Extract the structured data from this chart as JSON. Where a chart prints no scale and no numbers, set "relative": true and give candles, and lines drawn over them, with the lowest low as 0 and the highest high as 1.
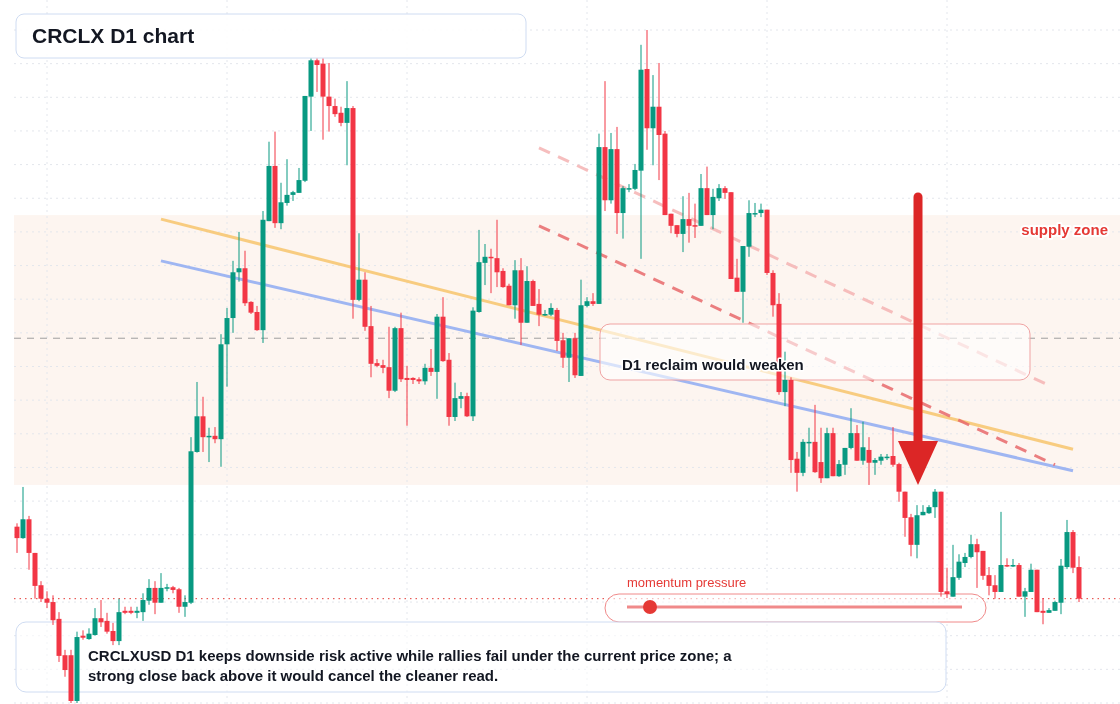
{
  "chart_data": {
    "type": "candlestick",
    "title": "CRCLX D1 chart",
    "relative": true,
    "grid": true,
    "categories": [
      null,
      null,
      null,
      null,
      null,
      null,
      null,
      null,
      null,
      null,
      null,
      null,
      null,
      null,
      null,
      null,
      null,
      null,
      null,
      null,
      null,
      null,
      null,
      null,
      null,
      null,
      null,
      null,
      null,
      null,
      null,
      null,
      null,
      null,
      null,
      null,
      null,
      null,
      null,
      null,
      null,
      null,
      null,
      null,
      null,
      null,
      null,
      null,
      null,
      null,
      null,
      null,
      null,
      null,
      null,
      null,
      null,
      null,
      null,
      null,
      null,
      null,
      null,
      null,
      null,
      null,
      null,
      null,
      null,
      null,
      null,
      null,
      null,
      null,
      null,
      null,
      null,
      null,
      null,
      null,
      null,
      null,
      null,
      null,
      null,
      null,
      null,
      null,
      null,
      null,
      null,
      null,
      null,
      null,
      null,
      null,
      null,
      null,
      null,
      null,
      null,
      null,
      null,
      null,
      null,
      null,
      null,
      null,
      null,
      null,
      null,
      null,
      null,
      null,
      null,
      null,
      null,
      null,
      null,
      null,
      null,
      null,
      null,
      null,
      null,
      null,
      null,
      null,
      null,
      null,
      null,
      null,
      null,
      null,
      null,
      null,
      null,
      null,
      null,
      null,
      null,
      null,
      null,
      null,
      null,
      null,
      null,
      null,
      null,
      null,
      null,
      null,
      null,
      null,
      null,
      null,
      null,
      null,
      null,
      null,
      null,
      null,
      null,
      null,
      null,
      null,
      null,
      null,
      null,
      null,
      null,
      null,
      null,
      null,
      null,
      null,
      null,
      null
    ],
    "ohlc": [
      [
        0.262,
        0.267,
        0.223,
        0.245
      ],
      [
        0.245,
        0.321,
        0.244,
        0.273
      ],
      [
        0.273,
        0.278,
        0.198,
        0.223
      ],
      [
        0.223,
        0.223,
        0.155,
        0.174
      ],
      [
        0.175,
        0.181,
        0.15,
        0.155
      ],
      [
        0.155,
        0.166,
        0.141,
        0.149
      ],
      [
        0.15,
        0.16,
        0.116,
        0.123
      ],
      [
        0.125,
        0.135,
        0.061,
        0.07
      ],
      [
        0.071,
        0.079,
        0.039,
        0.049
      ],
      [
        0.071,
        0.079,
        0,
        0.003
      ],
      [
        0.003,
        0.106,
        0,
        0.098
      ],
      [
        0.1,
        0.108,
        0.094,
        0.097
      ],
      [
        0.095,
        0.111,
        0.094,
        0.103
      ],
      [
        0.101,
        0.141,
        0.1,
        0.126
      ],
      [
        0.126,
        0.153,
        0.113,
        0.12
      ],
      [
        0.122,
        0.134,
        0.103,
        0.106
      ],
      [
        0.107,
        0.119,
        0.086,
        0.092
      ],
      [
        0.092,
        0.155,
        0.086,
        0.135
      ],
      [
        0.137,
        0.143,
        0.132,
        0.134
      ],
      [
        0.137,
        0.143,
        0.132,
        0.134
      ],
      [
        0.134,
        0.143,
        0.126,
        0.137
      ],
      [
        0.135,
        0.163,
        0.122,
        0.153
      ],
      [
        0.152,
        0.184,
        0.146,
        0.171
      ],
      [
        0.171,
        0.181,
        0.132,
        0.149
      ],
      [
        0.149,
        0.193,
        0.149,
        0.171
      ],
      [
        0.171,
        0.177,
        0.166,
        0.172
      ],
      [
        0.172,
        0.174,
        0.163,
        0.168
      ],
      [
        0.169,
        0.171,
        0.134,
        0.143
      ],
      [
        0.143,
        0.16,
        0.128,
        0.15
      ],
      [
        0.149,
        0.395,
        0.147,
        0.374
      ],
      [
        0.373,
        0.477,
        0.372,
        0.426
      ],
      [
        0.426,
        0.455,
        0.373,
        0.395
      ],
      [
        0.395,
        0.409,
        0.358,
        0.397
      ],
      [
        0.397,
        0.41,
        0.386,
        0.392
      ],
      [
        0.392,
        0.548,
        0.351,
        0.533
      ],
      [
        0.533,
        0.587,
        0.47,
        0.572
      ],
      [
        0.572,
        0.657,
        0.55,
        0.64
      ],
      [
        0.64,
        0.7,
        0.626,
        0.646
      ],
      [
        0.646,
        0.672,
        0.59,
        0.594
      ],
      [
        0.596,
        0.597,
        0.578,
        0.58
      ],
      [
        0.581,
        0.59,
        0.553,
        0.554
      ],
      [
        0.554,
        0.731,
        0.535,
        0.718
      ],
      [
        0.716,
        0.834,
        0.716,
        0.798
      ],
      [
        0.798,
        0.849,
        0.706,
        0.713
      ],
      [
        0.713,
        0.773,
        0.704,
        0.744
      ],
      [
        0.743,
        0.808,
        0.739,
        0.755
      ],
      [
        0.755,
        0.761,
        0.746,
        0.759
      ],
      [
        0.758,
        0.795,
        0.758,
        0.777
      ],
      [
        0.776,
        0.902,
        0.774,
        0.902
      ],
      [
        0.901,
        0.958,
        0.85,
        0.955
      ],
      [
        0.955,
        0.958,
        0.908,
        0.948
      ],
      [
        0.95,
        0.958,
        0.837,
        0.901
      ],
      [
        0.901,
        0.951,
        0.849,
        0.887
      ],
      [
        0.887,
        0.898,
        0.871,
        0.875
      ],
      [
        0.877,
        0.886,
        0.857,
        0.862
      ],
      [
        0.862,
        0.924,
        0.799,
        0.884
      ],
      [
        0.884,
        0.887,
        0.571,
        0.599
      ],
      [
        0.599,
        0.698,
        0.597,
        0.629
      ],
      [
        0.629,
        0.64,
        0.553,
        0.559
      ],
      [
        0.56,
        0.59,
        0.484,
        0.504
      ],
      [
        0.505,
        0.511,
        0.499,
        0.501
      ],
      [
        0.502,
        0.51,
        0.49,
        0.498
      ],
      [
        0.499,
        0.559,
        0.453,
        0.464
      ],
      [
        0.464,
        0.559,
        0.462,
        0.557
      ],
      [
        0.557,
        0.58,
        0.477,
        0.481
      ],
      [
        0.483,
        0.501,
        0.412,
        0.48
      ],
      [
        0.483,
        0.484,
        0.474,
        0.48
      ],
      [
        0.481,
        0.484,
        0.474,
        0.478
      ],
      [
        0.478,
        0.504,
        0.473,
        0.498
      ],
      [
        0.498,
        0.526,
        0.486,
        0.492
      ],
      [
        0.492,
        0.578,
        0.452,
        0.574
      ],
      [
        0.574,
        0.603,
        0.507,
        0.508
      ],
      [
        0.51,
        0.52,
        0.412,
        0.425
      ],
      [
        0.425,
        0.476,
        0.419,
        0.453
      ],
      [
        0.452,
        0.462,
        0.438,
        0.456
      ],
      [
        0.456,
        0.461,
        0.425,
        0.426
      ],
      [
        0.426,
        0.588,
        0.419,
        0.583
      ],
      [
        0.581,
        0.703,
        0.58,
        0.655
      ],
      [
        0.654,
        0.682,
        0.621,
        0.663
      ],
      [
        0.663,
        0.675,
        0.609,
        0.661
      ],
      [
        0.661,
        0.718,
        0.618,
        0.64
      ],
      [
        0.642,
        0.646,
        0.617,
        0.618
      ],
      [
        0.62,
        0.623,
        0.591,
        0.591
      ],
      [
        0.591,
        0.658,
        0.571,
        0.643
      ],
      [
        0.643,
        0.661,
        0.532,
        0.565
      ],
      [
        0.565,
        0.649,
        0.565,
        0.627
      ],
      [
        0.627,
        0.629,
        0.59,
        0.59
      ],
      [
        0.593,
        0.615,
        0.56,
        0.577
      ],
      [
        0.577,
        0.584,
        0.575,
        0.578
      ],
      [
        0.577,
        0.594,
        0.575,
        0.587
      ],
      [
        0.584,
        0.587,
        0.523,
        0.538
      ],
      [
        0.539,
        0.55,
        0.498,
        0.513
      ],
      [
        0.513,
        0.542,
        0.477,
        0.542
      ],
      [
        0.542,
        0.55,
        0.483,
        0.487
      ],
      [
        0.486,
        0.629,
        0.486,
        0.591
      ],
      [
        0.59,
        0.603,
        0.588,
        0.597
      ],
      [
        0.597,
        0.609,
        0.59,
        0.593
      ],
      [
        0.593,
        0.846,
        0.593,
        0.826
      ],
      [
        0.826,
        0.924,
        0.731,
        0.747
      ],
      [
        0.747,
        0.847,
        0.742,
        0.823
      ],
      [
        0.823,
        0.856,
        0.697,
        0.728
      ],
      [
        0.728,
        0.768,
        0.69,
        0.765
      ],
      [
        0.764,
        0.771,
        0.759,
        0.765
      ],
      [
        0.764,
        0.801,
        0.762,
        0.792
      ],
      [
        0.791,
        0.978,
        0.66,
        0.941
      ],
      [
        0.942,
        1,
        0.822,
        0.854
      ],
      [
        0.854,
        0.933,
        0.799,
        0.886
      ],
      [
        0.886,
        0.951,
        0.777,
        0.844
      ],
      [
        0.846,
        0.85,
        0.725,
        0.725
      ],
      [
        0.727,
        0.727,
        0.698,
        0.709
      ],
      [
        0.71,
        0.71,
        0.692,
        0.697
      ],
      [
        0.697,
        0.753,
        0.67,
        0.719
      ],
      [
        0.719,
        0.758,
        0.684,
        0.709
      ],
      [
        0.71,
        0.742,
        0.691,
        0.709
      ],
      [
        0.709,
        0.786,
        0.709,
        0.765
      ],
      [
        0.765,
        0.797,
        0.725,
        0.725
      ],
      [
        0.725,
        0.764,
        0.704,
        0.752
      ],
      [
        0.75,
        0.771,
        0.746,
        0.765
      ],
      [
        0.765,
        0.768,
        0.749,
        0.758
      ],
      [
        0.759,
        0.759,
        0.63,
        0.63
      ],
      [
        0.632,
        0.66,
        0.611,
        0.611
      ],
      [
        0.611,
        0.679,
        0.565,
        0.679
      ],
      [
        0.678,
        0.747,
        0.663,
        0.728
      ],
      [
        0.727,
        0.743,
        0.722,
        0.728
      ],
      [
        0.728,
        0.742,
        0.722,
        0.733
      ],
      [
        0.733,
        0.733,
        0.636,
        0.639
      ],
      [
        0.639,
        0.643,
        0.574,
        0.591
      ],
      [
        0.593,
        0.609,
        0.458,
        0.462
      ],
      [
        0.462,
        0.522,
        0.441,
        0.48
      ],
      [
        0.48,
        0.484,
        0.342,
        0.361
      ],
      [
        0.363,
        0.373,
        0.314,
        0.342
      ],
      [
        0.342,
        0.392,
        0.337,
        0.388
      ],
      [
        0.386,
        0.409,
        0.366,
        0.388
      ],
      [
        0.388,
        0.443,
        0.342,
        0.343
      ],
      [
        0.358,
        0.409,
        0.327,
        0.334
      ],
      [
        0.334,
        0.409,
        0.334,
        0.401
      ],
      [
        0.401,
        0.409,
        0.337,
        0.337
      ],
      [
        0.337,
        0.361,
        0.336,
        0.355
      ],
      [
        0.354,
        0.379,
        0.339,
        0.379
      ],
      [
        0.379,
        0.438,
        0.377,
        0.401
      ],
      [
        0.401,
        0.413,
        0.36,
        0.36
      ],
      [
        0.36,
        0.418,
        0.354,
        0.38
      ],
      [
        0.376,
        0.395,
        0.324,
        0.357
      ],
      [
        0.357,
        0.364,
        0.339,
        0.361
      ],
      [
        0.36,
        0.37,
        0.354,
        0.366
      ],
      [
        0.364,
        0.37,
        0.361,
        0.366
      ],
      [
        0.367,
        0.41,
        0.351,
        0.354
      ],
      [
        0.355,
        0.357,
        0.299,
        0.314
      ],
      [
        0.314,
        0.314,
        0.247,
        0.275
      ],
      [
        0.276,
        0.281,
        0.218,
        0.235
      ],
      [
        0.235,
        0.294,
        0.215,
        0.279
      ],
      [
        0.279,
        0.294,
        0.279,
        0.284
      ],
      [
        0.282,
        0.294,
        0.281,
        0.291
      ],
      [
        0.291,
        0.318,
        0.275,
        0.314
      ],
      [
        0.314,
        0.314,
        0.158,
        0.165
      ],
      [
        0.166,
        0.201,
        0.156,
        0.162
      ],
      [
        0.158,
        0.235,
        0.158,
        0.187
      ],
      [
        0.186,
        0.221,
        0.183,
        0.21
      ],
      [
        0.208,
        0.223,
        0.202,
        0.217
      ],
      [
        0.217,
        0.25,
        0.215,
        0.236
      ],
      [
        0.236,
        0.244,
        0.171,
        0.224
      ],
      [
        0.226,
        0.226,
        0.183,
        0.189
      ],
      [
        0.19,
        0.202,
        0.16,
        0.174
      ],
      [
        0.175,
        0.19,
        0.155,
        0.165
      ],
      [
        0.165,
        0.284,
        0.165,
        0.205
      ],
      [
        0.205,
        0.215,
        0.202,
        0.204
      ],
      [
        0.204,
        0.214,
        0.202,
        0.205
      ],
      [
        0.205,
        0.208,
        0.158,
        0.158
      ],
      [
        0.158,
        0.171,
        0.128,
        0.166
      ],
      [
        0.165,
        0.207,
        0.165,
        0.198
      ],
      [
        0.198,
        0.198,
        0.135,
        0.135
      ],
      [
        0.137,
        0.156,
        0.117,
        0.134
      ],
      [
        0.134,
        0.141,
        0.134,
        0.138
      ],
      [
        0.137,
        0.152,
        0.137,
        0.15
      ],
      [
        0.149,
        0.214,
        0.132,
        0.204
      ],
      [
        0.202,
        0.272,
        0.199,
        0.254
      ],
      [
        0.254,
        0.257,
        0.193,
        0.201
      ],
      [
        0.202,
        0.218,
        0.15,
        0.155
      ]
    ],
    "series": [
      {
        "type": "line",
        "color": "#f7c46c",
        "line_style": "solid",
        "values": [
          null,
          null,
          null,
          null,
          null,
          null,
          null,
          null,
          null,
          null,
          null,
          null,
          null,
          null,
          null,
          null,
          null,
          null,
          null,
          null,
          null,
          null,
          null,
          null,
          0.719,
          null,
          null,
          null,
          null,
          null,
          null,
          null,
          null,
          null,
          null,
          null,
          null,
          null,
          null,
          null,
          null,
          null,
          null,
          null,
          null,
          null,
          null,
          null,
          null,
          null,
          null,
          null,
          null,
          null,
          null,
          null,
          null,
          null,
          null,
          null,
          null,
          null,
          null,
          null,
          null,
          null,
          null,
          null,
          null,
          null,
          null,
          null,
          null,
          null,
          null,
          null,
          null,
          null,
          null,
          null,
          null,
          null,
          null,
          null,
          null,
          null,
          null,
          null,
          null,
          null,
          null,
          null,
          null,
          null,
          null,
          null,
          null,
          null,
          null,
          null,
          null,
          null,
          null,
          null,
          null,
          null,
          null,
          null,
          null,
          null,
          null,
          null,
          null,
          null,
          null,
          null,
          null,
          null,
          null,
          null,
          null,
          null,
          null,
          null,
          null,
          null,
          null,
          null,
          null,
          null,
          null,
          null,
          null,
          null,
          null,
          null,
          null,
          null,
          null,
          null,
          null,
          null,
          null,
          null,
          null,
          null,
          null,
          null,
          null,
          null,
          null,
          null,
          null,
          null,
          null,
          null,
          null,
          null,
          null,
          null,
          null,
          null,
          null,
          null,
          null,
          null,
          null,
          null,
          null,
          null,
          null,
          null,
          null,
          null,
          null,
          null,
          0.377,
          null
        ]
      },
      {
        "type": "line",
        "color": "#8eaaf2",
        "line_style": "solid",
        "values": [
          null,
          null,
          null,
          null,
          null,
          null,
          null,
          null,
          null,
          null,
          null,
          null,
          null,
          null,
          null,
          null,
          null,
          null,
          null,
          null,
          null,
          null,
          null,
          null,
          0.657,
          null,
          null,
          null,
          null,
          null,
          null,
          null,
          null,
          null,
          null,
          null,
          null,
          null,
          null,
          null,
          null,
          null,
          null,
          null,
          null,
          null,
          null,
          null,
          null,
          null,
          null,
          null,
          null,
          null,
          null,
          null,
          null,
          null,
          null,
          null,
          null,
          null,
          null,
          null,
          null,
          null,
          null,
          null,
          null,
          null,
          null,
          null,
          null,
          null,
          null,
          null,
          null,
          null,
          null,
          null,
          null,
          null,
          null,
          null,
          null,
          null,
          null,
          null,
          null,
          null,
          null,
          null,
          null,
          null,
          null,
          null,
          null,
          null,
          null,
          null,
          null,
          null,
          null,
          null,
          null,
          null,
          null,
          null,
          null,
          null,
          null,
          null,
          null,
          null,
          null,
          null,
          null,
          null,
          null,
          null,
          null,
          null,
          null,
          null,
          null,
          null,
          null,
          null,
          null,
          null,
          null,
          null,
          null,
          null,
          null,
          null,
          null,
          null,
          null,
          null,
          null,
          null,
          null,
          null,
          null,
          null,
          null,
          null,
          null,
          null,
          null,
          null,
          null,
          null,
          null,
          null,
          null,
          null,
          null,
          null,
          null,
          null,
          null,
          null,
          null,
          null,
          null,
          null,
          null,
          null,
          null,
          null,
          null,
          null,
          null,
          null,
          0.345,
          null
        ]
      },
      {
        "type": "line",
        "color": "#e8696b",
        "line_style": "dashed",
        "values": [
          null,
          null,
          null,
          null,
          null,
          null,
          null,
          null,
          null,
          null,
          null,
          null,
          null,
          null,
          null,
          null,
          null,
          null,
          null,
          null,
          null,
          null,
          null,
          null,
          null,
          null,
          null,
          null,
          null,
          null,
          null,
          null,
          null,
          null,
          null,
          null,
          null,
          null,
          null,
          null,
          null,
          null,
          null,
          null,
          null,
          null,
          null,
          null,
          null,
          null,
          null,
          null,
          null,
          null,
          null,
          null,
          null,
          null,
          null,
          null,
          null,
          null,
          null,
          null,
          null,
          null,
          null,
          null,
          null,
          null,
          null,
          null,
          null,
          null,
          null,
          null,
          null,
          null,
          null,
          null,
          null,
          null,
          null,
          null,
          null,
          null,
          null,
          0.709,
          null,
          null,
          null,
          null,
          null,
          null,
          null,
          null,
          null,
          null,
          null,
          null,
          null,
          null,
          null,
          null,
          null,
          null,
          null,
          null,
          null,
          null,
          null,
          null,
          null,
          null,
          null,
          null,
          null,
          null,
          null,
          null,
          null,
          null,
          null,
          null,
          null,
          null,
          null,
          null,
          null,
          null,
          null,
          null,
          null,
          null,
          null,
          null,
          null,
          null,
          null,
          null,
          null,
          null,
          null,
          null,
          null,
          null,
          null,
          null,
          null,
          null,
          null,
          null,
          null,
          null,
          null,
          null,
          null,
          null,
          null,
          null,
          null,
          null,
          null,
          null,
          null,
          null,
          null,
          null,
          null,
          null,
          null,
          null,
          null,
          0.354,
          null,
          null,
          null,
          null
        ]
      },
      {
        "type": "line",
        "color": "#f4b3b3",
        "line_style": "dashed",
        "values": [
          null,
          null,
          null,
          null,
          null,
          null,
          null,
          null,
          null,
          null,
          null,
          null,
          null,
          null,
          null,
          null,
          null,
          null,
          null,
          null,
          null,
          null,
          null,
          null,
          null,
          null,
          null,
          null,
          null,
          null,
          null,
          null,
          null,
          null,
          null,
          null,
          null,
          null,
          null,
          null,
          null,
          null,
          null,
          null,
          null,
          null,
          null,
          null,
          null,
          null,
          null,
          null,
          null,
          null,
          null,
          null,
          null,
          null,
          null,
          null,
          null,
          null,
          null,
          null,
          null,
          null,
          null,
          null,
          null,
          null,
          null,
          null,
          null,
          null,
          null,
          null,
          null,
          null,
          null,
          null,
          null,
          null,
          null,
          null,
          null,
          null,
          null,
          0.825,
          null,
          null,
          null,
          null,
          null,
          null,
          null,
          null,
          null,
          null,
          null,
          null,
          null,
          null,
          null,
          null,
          null,
          null,
          null,
          null,
          null,
          null,
          null,
          null,
          null,
          null,
          null,
          null,
          null,
          null,
          null,
          null,
          null,
          null,
          null,
          null,
          null,
          null,
          null,
          null,
          null,
          null,
          null,
          null,
          null,
          null,
          null,
          null,
          null,
          null,
          null,
          null,
          null,
          null,
          null,
          null,
          null,
          null,
          null,
          null,
          null,
          null,
          null,
          null,
          null,
          null,
          null,
          null,
          null,
          null,
          null,
          null,
          null,
          null,
          null,
          null,
          null,
          null,
          null,
          null,
          null,
          null,
          null,
          null,
          0.472,
          null,
          null,
          null,
          null,
          null
        ]
      }
    ],
    "bands": [
      {
        "axis": "y",
        "from": 0.324,
        "to": 0.725,
        "label": "supply zone",
        "color": "#fdf3ec"
      }
    ],
    "ref_lines": [
      {
        "axis": "y",
        "value": 0.542,
        "color": "#9e9e9e",
        "line_style": "dashed"
      },
      {
        "axis": "y",
        "value": 0.155,
        "color": "#e53935",
        "line_style": "dotted"
      }
    ],
    "annotations": [
      "D1 reclaim would weaken",
      "momentum pressure",
      "CRCLXUSD D1 keeps downside risk active while rallies fail under the current price zone; a strong close back above it would cancel the cleaner read."
    ]
  }
}
